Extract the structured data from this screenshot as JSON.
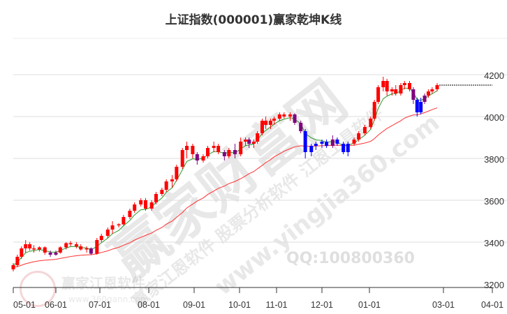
{
  "chart_data": {
    "type": "candlestick",
    "title": "上证指数(000001)赢家乾坤K线",
    "ylim": [
      3200,
      4250
    ],
    "y_ticks": [
      3200,
      3400,
      3600,
      3800,
      4000,
      4200
    ],
    "x_ticks": [
      "05-01",
      "06-01",
      "07-01",
      "08-01",
      "09-01",
      "10-01",
      "11-01",
      "12-01",
      "01-01",
      "03-01",
      "04-01"
    ],
    "grid": true,
    "colors": {
      "up": "#ff0000",
      "down_blue": "#0000ff",
      "down_purple": "#800080",
      "ma_fast": "#2a9a2a",
      "ma_slow": "#ff3030"
    },
    "candles": [
      [
        "05-01",
        3270,
        3300,
        3260,
        3290,
        "r"
      ],
      [
        "05-04",
        3290,
        3340,
        3280,
        3330,
        "r"
      ],
      [
        "05-07",
        3330,
        3380,
        3320,
        3370,
        "r"
      ],
      [
        "05-10",
        3370,
        3410,
        3350,
        3390,
        "r"
      ],
      [
        "05-13",
        3390,
        3400,
        3360,
        3370,
        "r"
      ],
      [
        "05-16",
        3370,
        3385,
        3350,
        3365,
        "r"
      ],
      [
        "05-20",
        3365,
        3380,
        3355,
        3375,
        "r"
      ],
      [
        "05-24",
        3375,
        3380,
        3340,
        3350,
        "r"
      ],
      [
        "05-28",
        3350,
        3360,
        3330,
        3340,
        "p"
      ],
      [
        "06-01",
        3340,
        3360,
        3335,
        3350,
        "p"
      ],
      [
        "06-04",
        3350,
        3380,
        3345,
        3375,
        "r"
      ],
      [
        "06-08",
        3375,
        3400,
        3365,
        3395,
        "r"
      ],
      [
        "06-11",
        3395,
        3405,
        3380,
        3390,
        "r"
      ],
      [
        "06-15",
        3390,
        3400,
        3370,
        3380,
        "r"
      ],
      [
        "06-18",
        3380,
        3390,
        3360,
        3365,
        "r"
      ],
      [
        "06-22",
        3365,
        3380,
        3350,
        3370,
        "r"
      ],
      [
        "06-25",
        3370,
        3375,
        3340,
        3345,
        "p"
      ],
      [
        "06-29",
        3345,
        3420,
        3340,
        3410,
        "r"
      ],
      [
        "07-02",
        3410,
        3440,
        3400,
        3430,
        "r"
      ],
      [
        "07-06",
        3430,
        3470,
        3420,
        3460,
        "r"
      ],
      [
        "07-09",
        3460,
        3500,
        3440,
        3480,
        "r"
      ],
      [
        "07-13",
        3480,
        3490,
        3470,
        3485,
        "r"
      ],
      [
        "07-16",
        3485,
        3530,
        3480,
        3520,
        "r"
      ],
      [
        "07-20",
        3520,
        3560,
        3510,
        3550,
        "r"
      ],
      [
        "07-23",
        3550,
        3590,
        3540,
        3580,
        "r"
      ],
      [
        "07-27",
        3580,
        3610,
        3570,
        3600,
        "r"
      ],
      [
        "07-30",
        3600,
        3610,
        3550,
        3560,
        "r"
      ],
      [
        "08-03",
        3560,
        3600,
        3550,
        3590,
        "r"
      ],
      [
        "08-06",
        3590,
        3640,
        3580,
        3630,
        "r"
      ],
      [
        "08-10",
        3630,
        3660,
        3620,
        3650,
        "r"
      ],
      [
        "08-13",
        3650,
        3700,
        3640,
        3690,
        "r"
      ],
      [
        "08-17",
        3690,
        3720,
        3660,
        3700,
        "r"
      ],
      [
        "08-20",
        3700,
        3770,
        3690,
        3760,
        "r"
      ],
      [
        "08-24",
        3760,
        3850,
        3750,
        3840,
        "r"
      ],
      [
        "08-27",
        3840,
        3880,
        3800,
        3860,
        "r"
      ],
      [
        "08-31",
        3860,
        3870,
        3800,
        3820,
        "r"
      ],
      [
        "09-03",
        3820,
        3830,
        3770,
        3790,
        "p"
      ],
      [
        "09-07",
        3790,
        3820,
        3780,
        3810,
        "r"
      ],
      [
        "09-10",
        3810,
        3860,
        3800,
        3850,
        "r"
      ],
      [
        "09-14",
        3850,
        3880,
        3830,
        3860,
        "r"
      ],
      [
        "09-17",
        3860,
        3870,
        3820,
        3830,
        "r"
      ],
      [
        "09-21",
        3830,
        3840,
        3790,
        3810,
        "p"
      ],
      [
        "09-24",
        3810,
        3850,
        3800,
        3840,
        "r"
      ],
      [
        "09-28",
        3840,
        3870,
        3800,
        3820,
        "p"
      ],
      [
        "10-02",
        3820,
        3900,
        3810,
        3880,
        "r"
      ],
      [
        "10-06",
        3880,
        3900,
        3860,
        3890,
        "r"
      ],
      [
        "10-09",
        3890,
        3900,
        3850,
        3870,
        "p"
      ],
      [
        "10-13",
        3870,
        3890,
        3850,
        3880,
        "r"
      ],
      [
        "10-16",
        3880,
        3930,
        3870,
        3920,
        "r"
      ],
      [
        "10-20",
        3920,
        3990,
        3910,
        3980,
        "r"
      ],
      [
        "10-23",
        3980,
        4000,
        3940,
        3960,
        "r"
      ],
      [
        "10-27",
        3960,
        3990,
        3940,
        3980,
        "r"
      ],
      [
        "10-30",
        3980,
        4000,
        3960,
        3990,
        "r"
      ],
      [
        "11-03",
        3990,
        4020,
        3980,
        4010,
        "r"
      ],
      [
        "11-06",
        4010,
        4020,
        3990,
        4000,
        "r"
      ],
      [
        "11-10",
        4000,
        4020,
        3980,
        4010,
        "r"
      ],
      [
        "11-13",
        4010,
        4015,
        3960,
        3970,
        "p"
      ],
      [
        "11-17",
        3970,
        3980,
        3920,
        3930,
        "p"
      ],
      [
        "11-20",
        3930,
        3940,
        3800,
        3830,
        "b"
      ],
      [
        "11-24",
        3830,
        3870,
        3810,
        3860,
        "b"
      ],
      [
        "11-27",
        3860,
        3880,
        3840,
        3870,
        "b"
      ],
      [
        "12-01",
        3870,
        3890,
        3850,
        3880,
        "b"
      ],
      [
        "12-04",
        3880,
        3890,
        3850,
        3860,
        "b"
      ],
      [
        "12-08",
        3860,
        3910,
        3850,
        3890,
        "p"
      ],
      [
        "12-11",
        3890,
        3900,
        3860,
        3870,
        "b"
      ],
      [
        "12-15",
        3870,
        3880,
        3820,
        3830,
        "b"
      ],
      [
        "12-18",
        3830,
        3880,
        3810,
        3870,
        "b"
      ],
      [
        "12-22",
        3870,
        3900,
        3860,
        3890,
        "r"
      ],
      [
        "12-25",
        3890,
        3930,
        3880,
        3920,
        "r"
      ],
      [
        "12-29",
        3920,
        3960,
        3910,
        3950,
        "r"
      ],
      [
        "01-02",
        3950,
        4000,
        3940,
        3990,
        "r"
      ],
      [
        "01-05",
        3990,
        4080,
        3980,
        4070,
        "r"
      ],
      [
        "01-08",
        4070,
        4150,
        4060,
        4140,
        "r"
      ],
      [
        "01-12",
        4140,
        4190,
        4120,
        4170,
        "r"
      ],
      [
        "01-15",
        4170,
        4180,
        4100,
        4120,
        "r"
      ],
      [
        "01-19",
        4120,
        4140,
        4100,
        4130,
        "r"
      ],
      [
        "01-22",
        4130,
        4150,
        4100,
        4110,
        "r"
      ],
      [
        "01-26",
        4110,
        4160,
        4100,
        4150,
        "r"
      ],
      [
        "01-29",
        4150,
        4170,
        4130,
        4160,
        "r"
      ],
      [
        "02-02",
        4160,
        4170,
        4120,
        4130,
        "r"
      ],
      [
        "02-05",
        4130,
        4140,
        4060,
        4080,
        "p"
      ],
      [
        "02-08",
        4080,
        4090,
        4000,
        4020,
        "b"
      ],
      [
        "02-11",
        4020,
        4090,
        4010,
        4070,
        "b"
      ],
      [
        "02-14",
        4070,
        4110,
        4060,
        4100,
        "p"
      ],
      [
        "02-17",
        4100,
        4130,
        4090,
        4120,
        "r"
      ],
      [
        "02-20",
        4120,
        4140,
        4110,
        4130,
        "r"
      ],
      [
        "02-24",
        4130,
        4160,
        4120,
        4150,
        "r"
      ]
    ]
  },
  "watermarks": {
    "big": "赢家财富网",
    "diag": "赢家江恩软件 股票分析软件 江恩工具软件",
    "url": "www.yingjia360.com",
    "qq": "QQ:100800360",
    "logo_name": "赢家江恩软件",
    "logo_url": "www.360gann.com",
    "logo_seal": "江赢恩家"
  }
}
